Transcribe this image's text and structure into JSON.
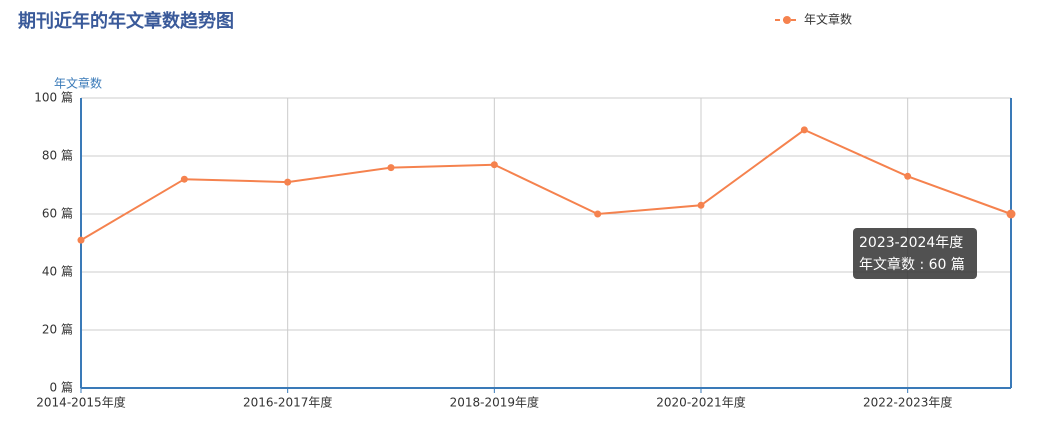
{
  "chart_data": {
    "type": "line",
    "title": "期刊近年的年文章数趋势图",
    "ylabel": "年文章数",
    "categories": [
      "2014-2015年度",
      null,
      "2016-2017年度",
      null,
      "2018-2019年度",
      null,
      "2020-2021年度",
      null,
      "2022-2023年度",
      null
    ],
    "series": [
      {
        "name": "年文章数",
        "color": "#f5824e",
        "values": [
          51,
          72,
          71,
          76,
          77,
          60,
          63,
          89,
          73,
          60
        ]
      }
    ],
    "ylim": [
      0,
      100
    ],
    "yticks": [
      {
        "value": 0,
        "label": "0 篇"
      },
      {
        "value": 20,
        "label": "20 篇"
      },
      {
        "value": 40,
        "label": "40 篇"
      },
      {
        "value": 60,
        "label": "60 篇"
      },
      {
        "value": 80,
        "label": "80 篇"
      },
      {
        "value": 100,
        "label": "100 篇"
      }
    ],
    "grid": true,
    "legend": "top-right",
    "tooltip": {
      "title": "2023-2024年度",
      "text": "年文章数 : 60 篇"
    }
  }
}
